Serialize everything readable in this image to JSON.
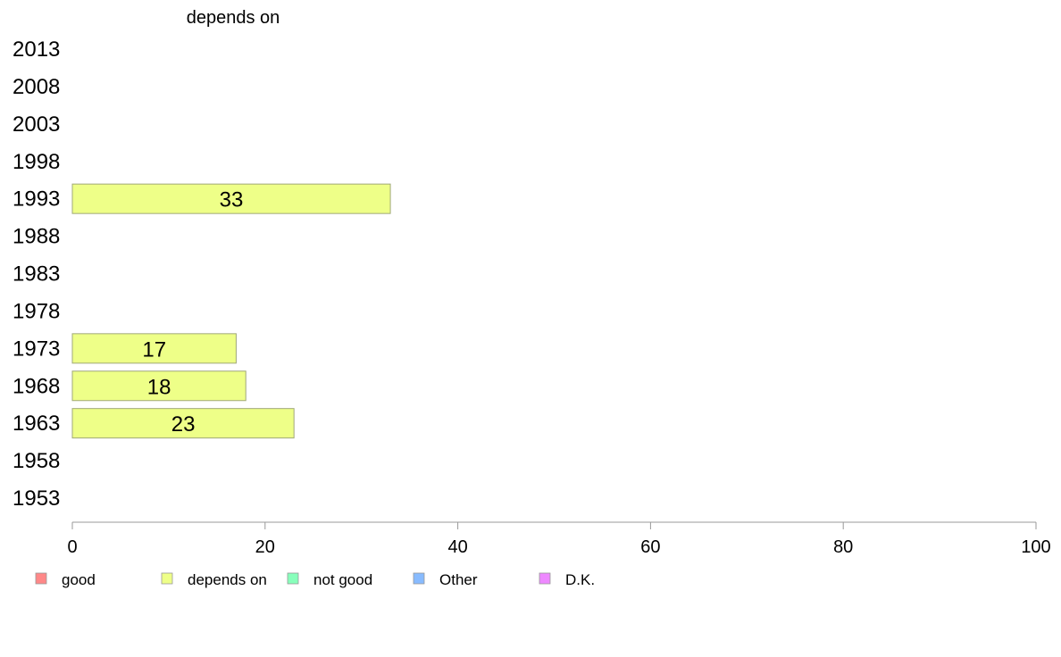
{
  "chart_data": {
    "type": "bar",
    "orientation": "horizontal",
    "title": "depends on",
    "categories": [
      "2013",
      "2008",
      "2003",
      "1998",
      "1993",
      "1988",
      "1983",
      "1978",
      "1973",
      "1968",
      "1963",
      "1958",
      "1953"
    ],
    "series": [
      {
        "name": "depends on",
        "color": "#eeff88",
        "values": [
          null,
          null,
          null,
          null,
          33,
          null,
          null,
          null,
          17,
          18,
          23,
          null,
          null
        ]
      }
    ],
    "xlim": [
      0,
      100
    ],
    "xticks": [
      0,
      20,
      40,
      60,
      80,
      100
    ],
    "xlabel": "",
    "ylabel": "",
    "grid": false,
    "legend_position": "bottom",
    "legend": [
      {
        "label": "good",
        "color": "#ff8888"
      },
      {
        "label": "depends on",
        "color": "#eeff88"
      },
      {
        "label": "not good",
        "color": "#88ffbb"
      },
      {
        "label": "Other",
        "color": "#88bbff"
      },
      {
        "label": "D.K.",
        "color": "#ee88ff"
      }
    ]
  }
}
